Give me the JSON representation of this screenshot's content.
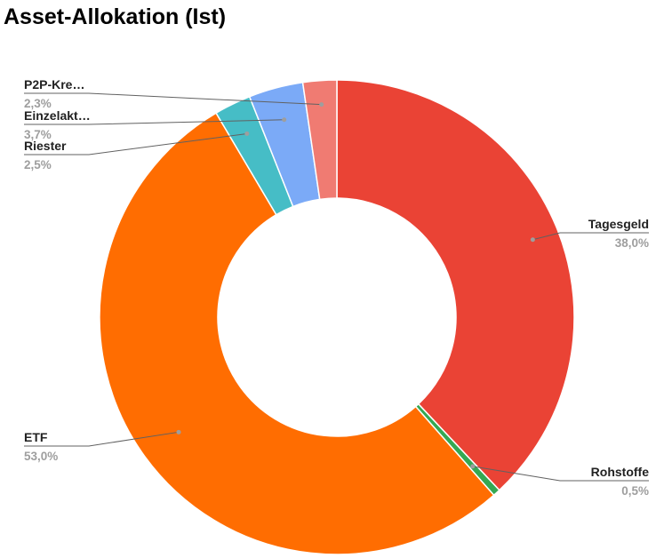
{
  "chart_data": {
    "type": "pie",
    "donut": true,
    "title": "Asset-Allokation (Ist)",
    "slices": [
      {
        "label": "Tagesgeld",
        "value": 38.0,
        "display": "38,0%",
        "color": "#ea4335"
      },
      {
        "label": "Rohstoffe",
        "value": 0.5,
        "display": "0,5%",
        "color": "#34a853"
      },
      {
        "label": "ETF",
        "value": 53.0,
        "display": "53,0%",
        "color": "#ff6d01"
      },
      {
        "label": "Riester",
        "value": 2.5,
        "display": "2,5%",
        "color": "#46bdc6"
      },
      {
        "label": "Einzelakt…",
        "value": 3.7,
        "display": "3,7%",
        "color": "#7baaf7"
      },
      {
        "label": "P2P-Kre…",
        "value": 2.3,
        "display": "2,3%",
        "color": "#f07b72"
      }
    ],
    "legend": "none"
  }
}
